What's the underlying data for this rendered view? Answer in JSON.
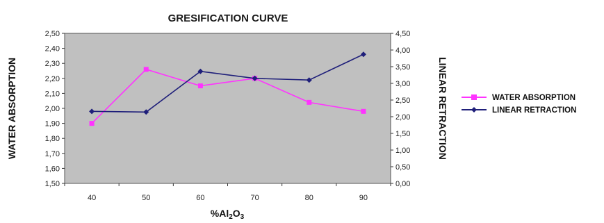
{
  "chart_data": {
    "type": "line",
    "title": "GRESIFICATION CURVE",
    "xlabel": "%Al2O3",
    "categories": [
      "40",
      "50",
      "60",
      "70",
      "80",
      "90"
    ],
    "y_left": {
      "label": "WATER ABSORPTION",
      "ylim": [
        1.5,
        2.5
      ],
      "ticks": [
        "1,50",
        "1,60",
        "1,70",
        "1,80",
        "1,90",
        "2,00",
        "2,10",
        "2,20",
        "2,30",
        "2,40",
        "2,50"
      ]
    },
    "y_right": {
      "label": "LINEAR RETRACTION",
      "ylim": [
        0,
        4.5
      ],
      "ticks": [
        "0,00",
        "0,50",
        "1,00",
        "1,50",
        "2,00",
        "2,50",
        "3,00",
        "3,50",
        "4,00",
        "4,50"
      ]
    },
    "series": [
      {
        "name": "WATER ABSORPTION",
        "axis": "left",
        "color": "#ff33ff",
        "marker": "square",
        "values": [
          1.9,
          2.26,
          2.15,
          2.2,
          2.04,
          1.98
        ]
      },
      {
        "name": "LINEAR RETRACTION",
        "axis": "right",
        "color": "#1f1f7a",
        "marker": "diamond",
        "values": [
          2.16,
          2.14,
          3.36,
          3.15,
          3.1,
          3.87
        ]
      }
    ],
    "grid": false,
    "plot_background": "#c0c0c0",
    "legend_position": "right"
  }
}
